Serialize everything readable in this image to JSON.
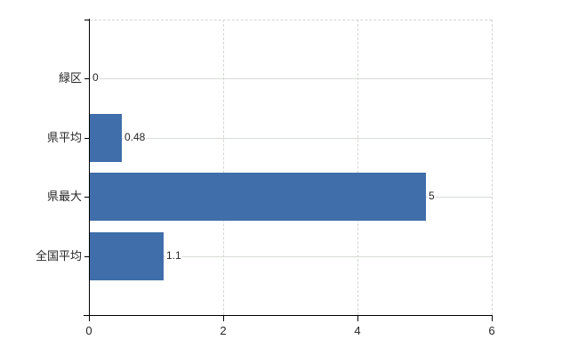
{
  "chart_data": {
    "type": "bar",
    "orientation": "horizontal",
    "title": "",
    "categories": [
      "緑区",
      "県平均",
      "県最大",
      "全国平均"
    ],
    "values": [
      0,
      0.48,
      5,
      1.1
    ],
    "value_labels": [
      "0",
      "0.48",
      "5",
      "1.1"
    ],
    "xlim": [
      0,
      6
    ],
    "x_ticks": [
      0,
      2,
      4,
      6
    ],
    "x_tick_labels": [
      "0",
      "2",
      "4",
      "6"
    ],
    "grid": "on",
    "legend": "none",
    "colors": {
      "bar": "#3f6eaa",
      "h_gridline": "#d6dcd6",
      "v_gridline": "#d3d9d3",
      "dashed_border": "#d4d4d4",
      "axis": "#000000",
      "text": "#262626",
      "background": "#ffffff"
    }
  }
}
